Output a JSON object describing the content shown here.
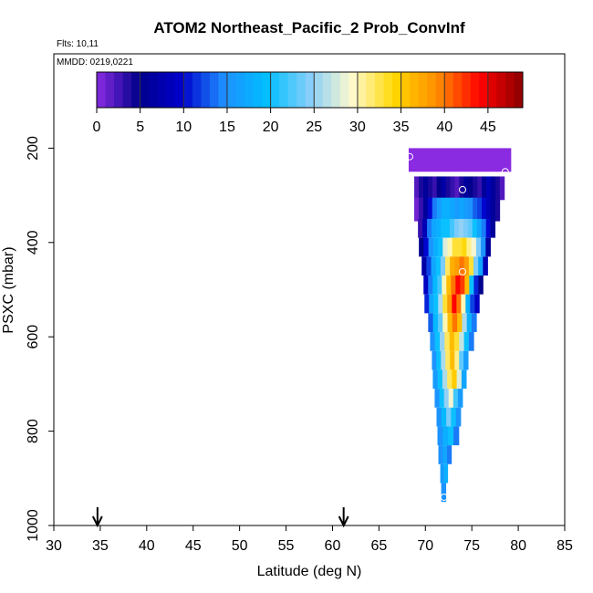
{
  "chart_data": {
    "type": "heatmap",
    "title": "ATOM2 Northeast_Pacific_2 Prob_ConvInf",
    "flights_label": "Flts: 10,11",
    "dates_label": "MMDD: 0219,0221",
    "xlabel": "Latitude (deg N)",
    "ylabel": "PSXC (mbar)",
    "xlim": [
      30,
      85
    ],
    "ylim": [
      1000,
      0
    ],
    "x_ticks": [
      "30",
      "35",
      "40",
      "45",
      "50",
      "55",
      "60",
      "65",
      "70",
      "75",
      "80",
      "85"
    ],
    "y_ticks": [
      "200",
      "400",
      "600",
      "800",
      "1000"
    ],
    "colorbar": {
      "range": [
        0,
        49
      ],
      "ticks": [
        "0",
        "5",
        "10",
        "15",
        "20",
        "25",
        "30",
        "35",
        "40",
        "45"
      ],
      "colors": [
        "#8a2be2",
        "#00008b",
        "#0000cd",
        "#1e90ff",
        "#00bfff",
        "#87cefa",
        "#fffacd",
        "#ffd700",
        "#ff8c00",
        "#ff0000",
        "#8b0000"
      ]
    },
    "arrows_at_latitude": [
      34.7,
      61.2
    ],
    "rows": [
      {
        "p": 225,
        "h": 50,
        "lat0": 68.2,
        "lat1": 79.2,
        "v": [
          0,
          0,
          0,
          0,
          0,
          0,
          0,
          0,
          0,
          0,
          0,
          0,
          0,
          0,
          0,
          0,
          0,
          0,
          0,
          0,
          0,
          0
        ]
      },
      {
        "p": 285,
        "h": 50,
        "lat0": 68.8,
        "lat1": 78.5,
        "v": [
          2,
          4,
          6,
          4,
          3,
          5,
          7,
          4,
          3,
          2,
          4,
          6,
          5,
          4,
          3,
          6,
          8,
          6,
          4,
          2
        ]
      },
      {
        "p": 330,
        "h": 50,
        "lat0": 68.8,
        "lat1": 78.0,
        "v": [
          1,
          3,
          6,
          10,
          14,
          16,
          18,
          18,
          17,
          16,
          17,
          16,
          15,
          13,
          12,
          10,
          8,
          6,
          4
        ]
      },
      {
        "p": 370,
        "h": 40,
        "lat0": 69.2,
        "lat1": 77.5,
        "v": [
          3,
          8,
          14,
          17,
          18,
          20,
          20,
          22,
          24,
          25,
          24,
          23,
          20,
          17,
          14,
          10,
          6
        ]
      },
      {
        "p": 410,
        "h": 40,
        "lat0": 69.3,
        "lat1": 77.0,
        "v": [
          5,
          10,
          15,
          18,
          20,
          28,
          30,
          33,
          33,
          34,
          31,
          29,
          24,
          15,
          6
        ]
      },
      {
        "p": 450,
        "h": 40,
        "lat0": 69.6,
        "lat1": 76.7,
        "v": [
          7,
          12,
          17,
          20,
          24,
          32,
          37,
          38,
          40,
          38,
          33,
          24,
          17,
          8
        ]
      },
      {
        "p": 490,
        "h": 40,
        "lat0": 69.8,
        "lat1": 76.2,
        "v": [
          9,
          14,
          19,
          22,
          30,
          36,
          40,
          44,
          42,
          36,
          20,
          11,
          5
        ]
      },
      {
        "p": 530,
        "h": 40,
        "lat0": 69.9,
        "lat1": 75.8,
        "v": [
          11,
          17,
          20,
          26,
          33,
          38,
          44,
          40,
          30,
          18,
          12,
          9
        ]
      },
      {
        "p": 570,
        "h": 40,
        "lat0": 70.3,
        "lat1": 75.5,
        "v": [
          13,
          19,
          23,
          30,
          36,
          40,
          36,
          26,
          18,
          14
        ]
      },
      {
        "p": 610,
        "h": 40,
        "lat0": 70.5,
        "lat1": 75.2,
        "v": [
          15,
          20,
          25,
          32,
          36,
          33,
          27,
          20,
          14
        ]
      },
      {
        "p": 650,
        "h": 40,
        "lat0": 70.7,
        "lat1": 74.6,
        "v": [
          15,
          20,
          26,
          32,
          36,
          31,
          23,
          16
        ]
      },
      {
        "p": 690,
        "h": 40,
        "lat0": 70.8,
        "lat1": 74.4,
        "v": [
          16,
          20,
          26,
          32,
          35,
          28,
          17
        ]
      },
      {
        "p": 730,
        "h": 40,
        "lat0": 71.0,
        "lat1": 74.0,
        "v": [
          15,
          20,
          25,
          29,
          22,
          16
        ]
      },
      {
        "p": 770,
        "h": 40,
        "lat0": 71.2,
        "lat1": 73.8,
        "v": [
          15,
          19,
          24,
          20,
          15
        ]
      },
      {
        "p": 810,
        "h": 40,
        "lat0": 71.3,
        "lat1": 73.6,
        "v": [
          15,
          18,
          20,
          14
        ]
      },
      {
        "p": 850,
        "h": 40,
        "lat0": 71.4,
        "lat1": 72.8,
        "v": [
          15,
          17,
          14
        ]
      },
      {
        "p": 890,
        "h": 40,
        "lat0": 71.6,
        "lat1": 72.4,
        "v": [
          16,
          18
        ]
      },
      {
        "p": 930,
        "h": 40,
        "lat0": 71.7,
        "lat1": 72.2,
        "v": [
          15
        ]
      }
    ],
    "markers": [
      {
        "lat": 68.3,
        "p": 218
      },
      {
        "lat": 78.6,
        "p": 250
      },
      {
        "lat": 74.0,
        "p": 288
      },
      {
        "lat": 74.0,
        "p": 462
      },
      {
        "lat": 72.0,
        "p": 940
      }
    ]
  }
}
